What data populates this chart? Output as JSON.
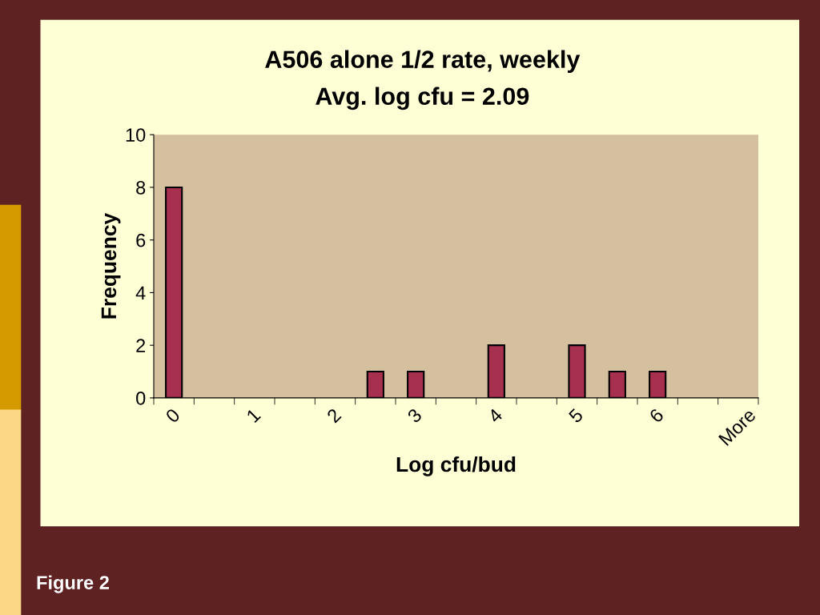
{
  "chart_data": {
    "type": "bar",
    "title": "A506 alone 1/2 rate, weekly",
    "subtitle": "Avg. log cfu = 2.09",
    "xlabel": "Log cfu/bud",
    "ylabel": "Frequency",
    "categories": [
      "0",
      null,
      "1",
      null,
      "2",
      null,
      "3",
      null,
      "4",
      null,
      "5",
      null,
      "6",
      null,
      "More"
    ],
    "values": [
      8,
      0,
      0,
      0,
      0,
      1,
      1,
      0,
      2,
      0,
      2,
      1,
      1,
      0,
      0
    ],
    "color": "#a8304f",
    "ylim": [
      0,
      10
    ],
    "yticks": [
      0,
      2,
      4,
      6,
      8,
      10
    ],
    "grid": false,
    "legend": false,
    "annotations": [
      "Figure 2"
    ]
  }
}
